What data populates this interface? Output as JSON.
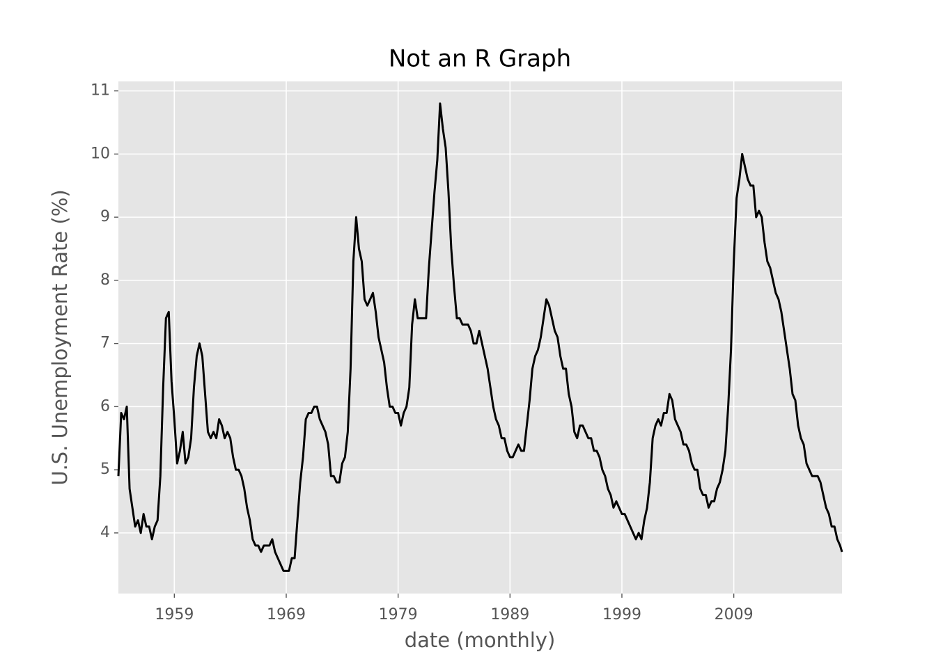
{
  "chart_data": {
    "type": "line",
    "title": "Not an R Graph",
    "x_label": "date (monthly)",
    "y_label": "U.S. Unemployment Rate (%)",
    "x": [
      1954,
      1954.25,
      1954.5,
      1954.75,
      1955,
      1955.25,
      1955.5,
      1955.75,
      1956,
      1956.25,
      1956.5,
      1956.75,
      1957,
      1957.25,
      1957.5,
      1957.75,
      1958,
      1958.25,
      1958.5,
      1958.75,
      1959,
      1959.25,
      1959.5,
      1959.75,
      1960,
      1960.25,
      1960.5,
      1960.75,
      1961,
      1961.25,
      1961.5,
      1961.75,
      1962,
      1962.25,
      1962.5,
      1962.75,
      1963,
      1963.25,
      1963.5,
      1963.75,
      1964,
      1964.25,
      1964.5,
      1964.75,
      1965,
      1965.25,
      1965.5,
      1965.75,
      1966,
      1966.25,
      1966.5,
      1966.75,
      1967,
      1967.25,
      1967.5,
      1967.75,
      1968,
      1968.25,
      1968.5,
      1968.75,
      1969,
      1969.25,
      1969.5,
      1969.75,
      1970,
      1970.25,
      1970.5,
      1970.75,
      1971,
      1971.25,
      1971.5,
      1971.75,
      1972,
      1972.25,
      1972.5,
      1972.75,
      1973,
      1973.25,
      1973.5,
      1973.75,
      1974,
      1974.25,
      1974.5,
      1974.75,
      1975,
      1975.25,
      1975.5,
      1975.75,
      1976,
      1976.25,
      1976.5,
      1976.75,
      1977,
      1977.25,
      1977.5,
      1977.75,
      1978,
      1978.25,
      1978.5,
      1978.75,
      1979,
      1979.25,
      1979.5,
      1979.75,
      1980,
      1980.25,
      1980.5,
      1980.75,
      1981,
      1981.25,
      1981.5,
      1981.75,
      1982,
      1982.25,
      1982.5,
      1982.75,
      1983,
      1983.25,
      1983.5,
      1983.75,
      1984,
      1984.25,
      1984.5,
      1984.75,
      1985,
      1985.25,
      1985.5,
      1985.75,
      1986,
      1986.25,
      1986.5,
      1986.75,
      1987,
      1987.25,
      1987.5,
      1987.75,
      1988,
      1988.25,
      1988.5,
      1988.75,
      1989,
      1989.25,
      1989.5,
      1989.75,
      1990,
      1990.25,
      1990.5,
      1990.75,
      1991,
      1991.25,
      1991.5,
      1991.75,
      1992,
      1992.25,
      1992.5,
      1992.75,
      1993,
      1993.25,
      1993.5,
      1993.75,
      1994,
      1994.25,
      1994.5,
      1994.75,
      1995,
      1995.25,
      1995.5,
      1995.75,
      1996,
      1996.25,
      1996.5,
      1996.75,
      1997,
      1997.25,
      1997.5,
      1997.75,
      1998,
      1998.25,
      1998.5,
      1998.75,
      1999,
      1999.25,
      1999.5,
      1999.75,
      2000,
      2000.25,
      2000.5,
      2000.75,
      2001,
      2001.25,
      2001.5,
      2001.75,
      2002,
      2002.25,
      2002.5,
      2002.75,
      2003,
      2003.25,
      2003.5,
      2003.75,
      2004,
      2004.25,
      2004.5,
      2004.75,
      2005,
      2005.25,
      2005.5,
      2005.75,
      2006,
      2006.25,
      2006.5,
      2006.75,
      2007,
      2007.25,
      2007.5,
      2007.75,
      2008,
      2008.25,
      2008.5,
      2008.75,
      2009,
      2009.25,
      2009.5,
      2009.75,
      2010,
      2010.25,
      2010.5,
      2010.75,
      2011,
      2011.25,
      2011.5,
      2011.75,
      2012,
      2012.25,
      2012.5,
      2012.75,
      2013,
      2013.25,
      2013.5,
      2013.75,
      2014,
      2014.25,
      2014.5,
      2014.75,
      2015,
      2015.25,
      2015.5,
      2015.75,
      2016,
      2016.25,
      2016.5,
      2016.75,
      2017,
      2017.25,
      2017.5,
      2017.75,
      2018,
      2018.25,
      2018.5,
      2018.67
    ],
    "series": [
      {
        "name": "U.S. Unemployment Rate",
        "color": "#000000",
        "values": [
          4.9,
          5.9,
          5.8,
          6.0,
          4.7,
          4.4,
          4.1,
          4.2,
          4.0,
          4.3,
          4.1,
          4.1,
          3.9,
          4.1,
          4.2,
          4.9,
          6.3,
          7.4,
          7.5,
          6.4,
          5.8,
          5.1,
          5.3,
          5.6,
          5.1,
          5.2,
          5.5,
          6.3,
          6.8,
          7.0,
          6.8,
          6.2,
          5.6,
          5.5,
          5.6,
          5.5,
          5.8,
          5.7,
          5.5,
          5.6,
          5.5,
          5.2,
          5.0,
          5.0,
          4.9,
          4.7,
          4.4,
          4.2,
          3.9,
          3.8,
          3.8,
          3.7,
          3.8,
          3.8,
          3.8,
          3.9,
          3.7,
          3.6,
          3.5,
          3.4,
          3.4,
          3.4,
          3.6,
          3.6,
          4.2,
          4.8,
          5.2,
          5.8,
          5.9,
          5.9,
          6.0,
          6.0,
          5.8,
          5.7,
          5.6,
          5.4,
          4.9,
          4.9,
          4.8,
          4.8,
          5.1,
          5.2,
          5.6,
          6.6,
          8.3,
          9.0,
          8.5,
          8.3,
          7.7,
          7.6,
          7.7,
          7.8,
          7.5,
          7.1,
          6.9,
          6.7,
          6.3,
          6.0,
          6.0,
          5.9,
          5.9,
          5.7,
          5.9,
          6.0,
          6.3,
          7.3,
          7.7,
          7.4,
          7.4,
          7.4,
          7.4,
          8.2,
          8.8,
          9.4,
          9.9,
          10.8,
          10.4,
          10.1,
          9.4,
          8.5,
          7.9,
          7.4,
          7.4,
          7.3,
          7.3,
          7.3,
          7.2,
          7.0,
          7.0,
          7.2,
          7.0,
          6.8,
          6.6,
          6.3,
          6.0,
          5.8,
          5.7,
          5.5,
          5.5,
          5.3,
          5.2,
          5.2,
          5.3,
          5.4,
          5.3,
          5.3,
          5.7,
          6.1,
          6.6,
          6.8,
          6.9,
          7.1,
          7.4,
          7.7,
          7.6,
          7.4,
          7.2,
          7.1,
          6.8,
          6.6,
          6.6,
          6.2,
          6.0,
          5.6,
          5.5,
          5.7,
          5.7,
          5.6,
          5.5,
          5.5,
          5.3,
          5.3,
          5.2,
          5.0,
          4.9,
          4.7,
          4.6,
          4.4,
          4.5,
          4.4,
          4.3,
          4.3,
          4.2,
          4.1,
          4.0,
          3.9,
          4.0,
          3.9,
          4.2,
          4.4,
          4.8,
          5.5,
          5.7,
          5.8,
          5.7,
          5.9,
          5.9,
          6.2,
          6.1,
          5.8,
          5.7,
          5.6,
          5.4,
          5.4,
          5.3,
          5.1,
          5.0,
          5.0,
          4.7,
          4.6,
          4.6,
          4.4,
          4.5,
          4.5,
          4.7,
          4.8,
          5.0,
          5.3,
          6.0,
          6.9,
          8.3,
          9.3,
          9.6,
          10.0,
          9.8,
          9.6,
          9.5,
          9.5,
          9.0,
          9.1,
          9.0,
          8.6,
          8.3,
          8.2,
          8.0,
          7.8,
          7.7,
          7.5,
          7.2,
          6.9,
          6.6,
          6.2,
          6.1,
          5.7,
          5.5,
          5.4,
          5.1,
          5.0,
          4.9,
          4.9,
          4.9,
          4.8,
          4.6,
          4.4,
          4.3,
          4.1,
          4.1,
          3.9,
          3.8,
          3.7
        ]
      }
    ],
    "xlim": [
      1954,
      2018.67
    ],
    "xticks": [
      1959,
      1969,
      1979,
      1989,
      1999,
      2009
    ],
    "ylim": [
      3.04,
      11.15
    ],
    "yticks": [
      4,
      5,
      6,
      7,
      8,
      9,
      10,
      11
    ],
    "grid": true
  }
}
